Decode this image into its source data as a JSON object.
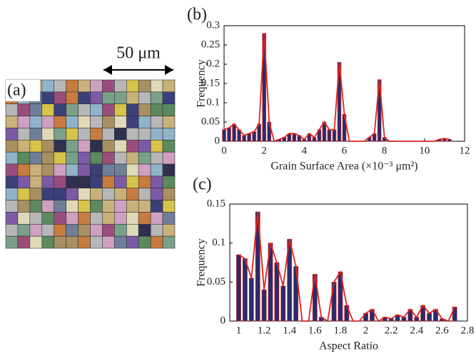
{
  "image": {
    "label": "(a)",
    "scale_bar": "50 μm"
  },
  "chart_data": [
    {
      "type": "bar",
      "panel_label": "(b)",
      "x_label": "Grain Surface Area (×10⁻³ μm²)",
      "y_label": "Frequency",
      "x": [
        0,
        0.25,
        0.5,
        0.75,
        1,
        1.25,
        1.5,
        1.75,
        2,
        2.25,
        2.5,
        2.75,
        3,
        3.25,
        3.5,
        3.75,
        4,
        4.25,
        4.5,
        4.75,
        5,
        5.25,
        5.5,
        5.75,
        6,
        6.25,
        6.5,
        6.75,
        7,
        7.25,
        7.5,
        7.75,
        8,
        8.25,
        10.5,
        10.75,
        11,
        11.25
      ],
      "values": [
        0.03,
        0.035,
        0.045,
        0.03,
        0.015,
        0.02,
        0.025,
        0.045,
        0.28,
        0.05,
        0,
        0.005,
        0.01,
        0.02,
        0.02,
        0.015,
        0.005,
        0.02,
        0.01,
        0.03,
        0.05,
        0.03,
        0.03,
        0.205,
        0.07,
        0,
        0,
        0,
        0,
        0.01,
        0.02,
        0.16,
        0.01,
        0,
        0,
        0.005,
        0.007,
        0.005
      ],
      "color": "#2b2a6b",
      "line_color": "#e0241c",
      "xlim": [
        0,
        12
      ],
      "xticks": [
        0,
        2,
        4,
        6,
        8,
        10,
        12
      ],
      "ylim": [
        0,
        0.3
      ],
      "yticks": [
        0,
        0.05,
        0.1,
        0.15,
        0.2,
        0.25,
        0.3
      ]
    },
    {
      "type": "bar",
      "panel_label": "(c)",
      "x_label": "Aspect Ratio",
      "y_label": "Frequency",
      "x": [
        1,
        1.05,
        1.1,
        1.15,
        1.2,
        1.25,
        1.3,
        1.35,
        1.4,
        1.45,
        1.5,
        1.55,
        1.6,
        1.65,
        1.7,
        1.75,
        1.8,
        1.85,
        1.9,
        1.95,
        2,
        2.05,
        2.1,
        2.15,
        2.2,
        2.25,
        2.3,
        2.35,
        2.4,
        2.45,
        2.5,
        2.55,
        2.6,
        2.65,
        2.7
      ],
      "values": [
        0.085,
        0.08,
        0.055,
        0.14,
        0.04,
        0.1,
        0.075,
        0.045,
        0.105,
        0.07,
        0,
        0,
        0.06,
        0.005,
        0,
        0.05,
        0.063,
        0.02,
        0,
        0,
        0.01,
        0.015,
        0,
        0.005,
        0.003,
        0.008,
        0.005,
        0.015,
        0.005,
        0.02,
        0.01,
        0.015,
        0.003,
        0,
        0.018
      ],
      "color": "#2b2a6b",
      "line_color": "#e0241c",
      "xlim": [
        0.93,
        2.8
      ],
      "xticks": [
        1,
        1.2,
        1.4,
        1.6,
        1.8,
        2,
        2.2,
        2.4,
        2.6,
        2.8
      ],
      "ylim": [
        0,
        0.15
      ],
      "yticks": [
        0,
        0.05,
        0.1,
        0.15
      ]
    }
  ]
}
